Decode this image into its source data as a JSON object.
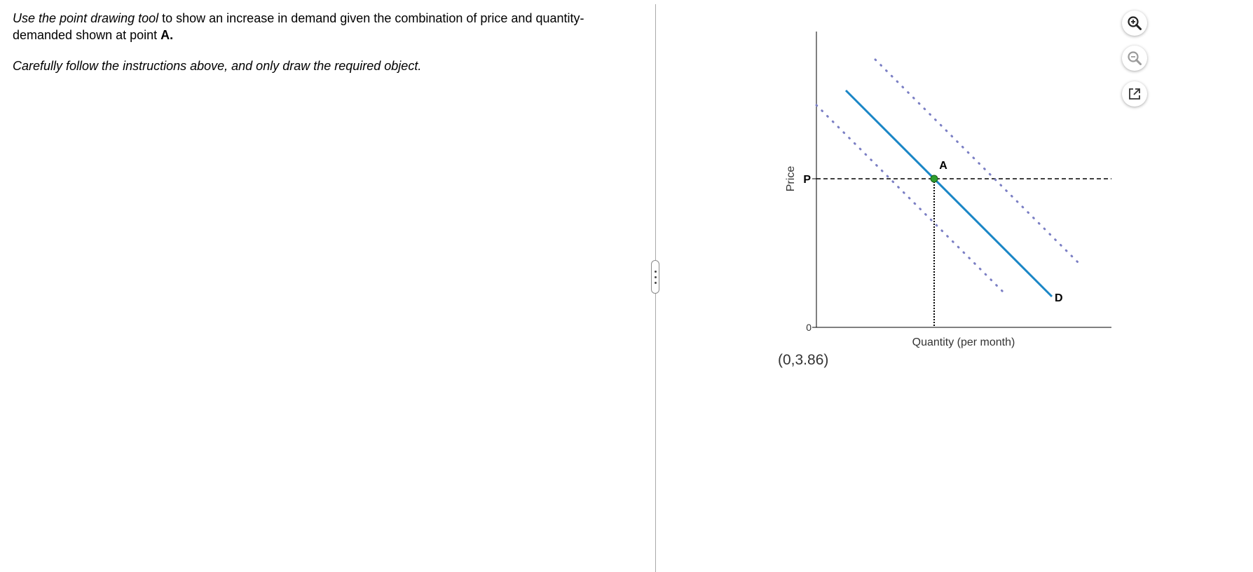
{
  "instructions": {
    "line1_italic": "Use the point drawing tool",
    "line1_rest": " to show an increase in demand given the combination of price and quantity-demanded shown at point ",
    "point_label": "A.",
    "line2": "Carefully follow the instructions above, and only draw the required object."
  },
  "graph": {
    "y_axis_label": "Price",
    "x_axis_label": "Quantity (per month)",
    "price_tick": "P",
    "origin_tick": "0",
    "point_label": "A",
    "curve_label": "D",
    "coordinate_readout": "(0,3.86)",
    "demand_color": "#1a86c6",
    "shifted_curve_color": "#7b7fc4",
    "point_color": "#2e9e2e"
  },
  "toolbar": {
    "zoom_in_icon": "zoom-in-icon",
    "zoom_out_icon": "zoom-out-icon",
    "popout_icon": "external-link-icon"
  }
}
